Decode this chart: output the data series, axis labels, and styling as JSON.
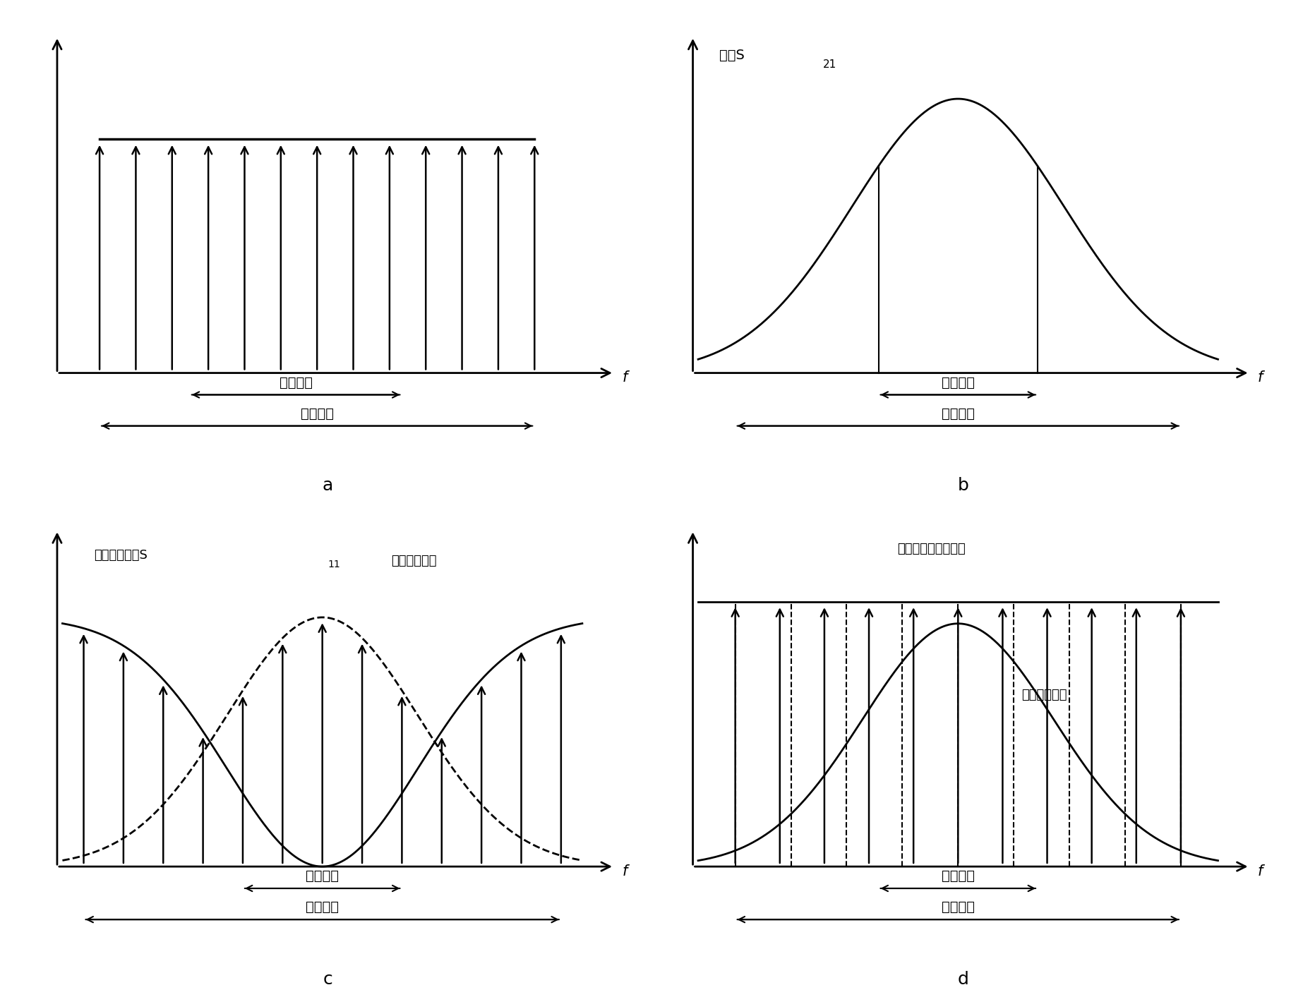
{
  "panel_labels": [
    "a",
    "b",
    "c",
    "d"
  ],
  "label_b_y": "天线S",
  "label_b_y_sub": "21",
  "label_c_y1": "天线回波损耗S",
  "label_c_y1_sub": "11",
  "label_c_y2": "天线辐射能量",
  "label_d_y1": "回波损耗补偿后的值",
  "label_d_y2": "天线辐射能量",
  "bandwidth_label": "工作带宽",
  "test_bandwidth_label": "测试带宽",
  "f_label": "f",
  "num_arrows_a": 13,
  "num_arrows_c": 13,
  "num_arrows_d": 11,
  "bg_color": "#ffffff",
  "line_color": "#000000"
}
